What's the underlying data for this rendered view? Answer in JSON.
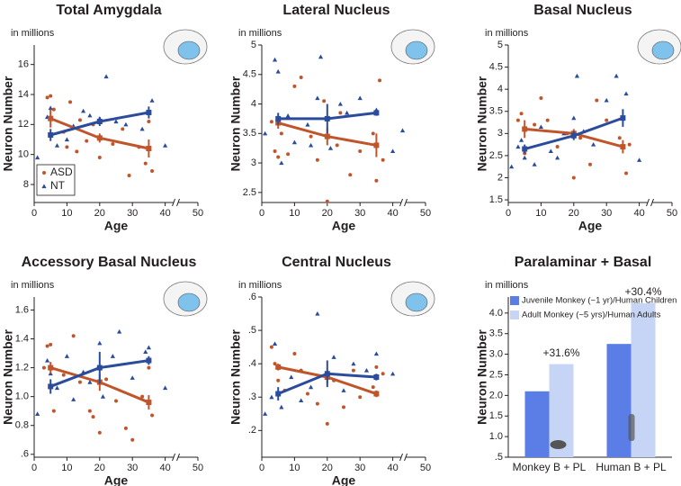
{
  "chart_data": [
    {
      "type": "scatter",
      "title": "Total Amygdala",
      "y_unit": "in millions",
      "xlabel": "Age",
      "ylabel": "Neuron Number",
      "xlim": [
        0,
        50
      ],
      "xticks": [
        0,
        10,
        20,
        30,
        40,
        50
      ],
      "ylim": [
        6.8,
        17.3
      ],
      "yticks": [
        8,
        10,
        12,
        14,
        16
      ],
      "legend": "lower left",
      "series": [
        {
          "name": "ASD",
          "color": "#c0552b",
          "marker": "circle",
          "x": [
            4,
            5,
            6,
            9,
            10,
            13,
            14,
            16,
            20,
            24,
            27,
            29,
            32,
            34,
            35,
            36,
            11,
            18
          ],
          "values": [
            13.8,
            13.9,
            13.0,
            11.5,
            10.5,
            10.2,
            12.3,
            10.9,
            9.8,
            10.7,
            11.7,
            8.6,
            10.5,
            9.4,
            12.2,
            8.9,
            13.5,
            12.0
          ],
          "mean_x": [
            5,
            20,
            35
          ],
          "mean_y": [
            12.4,
            11.1,
            10.4
          ],
          "mean_err": [
            0.6,
            0.3,
            0.6
          ]
        },
        {
          "name": "NT",
          "color": "#2b4c9b",
          "marker": "triangle",
          "x": [
            1,
            4,
            5,
            7,
            10,
            12,
            15,
            17,
            20,
            22,
            25,
            28,
            33,
            36,
            40
          ],
          "values": [
            9.8,
            12.5,
            13.1,
            10.6,
            11.0,
            11.9,
            12.9,
            12.6,
            12.4,
            15.2,
            12.2,
            12.0,
            11.7,
            13.6,
            10.6
          ],
          "mean_x": [
            5,
            20,
            35
          ],
          "mean_y": [
            11.3,
            12.2,
            12.8
          ],
          "mean_err": [
            0.4,
            0.3,
            0.4
          ]
        }
      ]
    },
    {
      "type": "scatter",
      "title": "Lateral Nucleus",
      "y_unit": "in millions",
      "xlabel": "Age",
      "ylabel": "Neuron Number",
      "xlim": [
        0,
        50
      ],
      "xticks": [
        0,
        10,
        20,
        30,
        40,
        50
      ],
      "ylim": [
        2.33,
        5
      ],
      "yticks": [
        2.5,
        3,
        3.5,
        4,
        4.5,
        5
      ],
      "series": [
        {
          "color": "#c0552b",
          "marker": "circle",
          "x": [
            3,
            4,
            5,
            6,
            8,
            10,
            12,
            15,
            17,
            19,
            20,
            23,
            24,
            27,
            30,
            34,
            35,
            36,
            37
          ],
          "values": [
            3.7,
            3.2,
            3.1,
            3.5,
            3.15,
            4.3,
            4.45,
            3.45,
            3.05,
            4.05,
            2.35,
            3.3,
            3.85,
            2.8,
            3.2,
            3.5,
            2.7,
            4.4,
            3.05
          ],
          "mean_x": [
            5,
            20,
            35
          ],
          "mean_y": [
            3.68,
            3.45,
            3.3
          ],
          "mean_err": [
            0.1,
            0.15,
            0.2
          ]
        },
        {
          "color": "#2b4c9b",
          "marker": "triangle",
          "x": [
            1,
            4,
            5,
            6,
            8,
            10,
            14,
            15,
            17,
            18,
            21,
            24,
            26,
            30,
            35,
            40,
            43
          ],
          "values": [
            3.5,
            4.75,
            4.55,
            3.0,
            3.8,
            3.35,
            3.65,
            3.3,
            4.1,
            4.8,
            3.25,
            4.0,
            3.85,
            4.1,
            3.9,
            3.2,
            3.55
          ],
          "mean_x": [
            5,
            20,
            35
          ],
          "mean_y": [
            3.75,
            3.75,
            3.85
          ],
          "mean_err": [
            0.1,
            0.25,
            0.05
          ]
        }
      ]
    },
    {
      "type": "scatter",
      "title": "Basal Nucleus",
      "y_unit": "in millions",
      "xlabel": "Age",
      "ylabel": "Neuron Number",
      "xlim": [
        0,
        50
      ],
      "xticks": [
        0,
        10,
        20,
        30,
        40,
        50
      ],
      "ylim": [
        1.44,
        5
      ],
      "yticks": [
        1.5,
        2,
        2.5,
        3,
        3.5,
        4,
        4.5,
        5
      ],
      "series": [
        {
          "color": "#c0552b",
          "marker": "circle",
          "x": [
            3,
            4,
            5,
            8,
            10,
            12,
            15,
            18,
            20,
            22,
            25,
            27,
            30,
            34,
            36,
            37
          ],
          "values": [
            3.3,
            3.45,
            2.55,
            3.2,
            3.8,
            3.3,
            2.7,
            3.0,
            2.0,
            2.9,
            2.3,
            3.75,
            3.3,
            2.9,
            2.1,
            2.75
          ],
          "mean_x": [
            5,
            20,
            35
          ],
          "mean_y": [
            3.1,
            3.0,
            2.7
          ],
          "mean_err": [
            0.2,
            0.1,
            0.15
          ]
        },
        {
          "color": "#2b4c9b",
          "marker": "triangle",
          "x": [
            1,
            3,
            4,
            5,
            8,
            10,
            13,
            15,
            17,
            20,
            21,
            23,
            26,
            30,
            33,
            36,
            40
          ],
          "values": [
            2.25,
            2.7,
            2.85,
            2.45,
            2.3,
            3.15,
            2.6,
            2.45,
            3.0,
            3.35,
            4.3,
            3.05,
            2.75,
            3.75,
            4.3,
            3.9,
            2.4
          ],
          "mean_x": [
            5,
            20,
            35
          ],
          "mean_y": [
            2.65,
            2.95,
            3.35
          ],
          "mean_err": [
            0.1,
            0.1,
            0.2
          ]
        }
      ]
    },
    {
      "type": "scatter",
      "title": "Accessory Basal Nucleus",
      "y_unit": "in millions",
      "xlabel": "Age",
      "ylabel": "Neuron Number",
      "xlim": [
        0,
        50
      ],
      "xticks": [
        0,
        10,
        20,
        30,
        40,
        50
      ],
      "ylim": [
        0.58,
        1.69
      ],
      "yticks": [
        {
          "value": 0.6,
          "label": ".6"
        },
        0.8,
        {
          "value": 1.0,
          "label": "1.0"
        },
        1.2,
        1.4,
        1.6
      ],
      "series": [
        {
          "color": "#c0552b",
          "marker": "circle",
          "x": [
            3,
            4,
            5,
            6,
            9,
            12,
            14,
            17,
            18,
            20,
            22,
            25,
            28,
            30,
            33,
            35,
            36
          ],
          "values": [
            1.2,
            1.35,
            1.36,
            0.9,
            1.15,
            1.42,
            1.1,
            0.9,
            0.86,
            0.75,
            1.12,
            0.97,
            0.78,
            0.7,
            1.0,
            1.2,
            0.87
          ],
          "mean_x": [
            5,
            20,
            35
          ],
          "mean_y": [
            1.2,
            1.1,
            0.96
          ],
          "mean_err": [
            0.04,
            0.06,
            0.05
          ]
        },
        {
          "color": "#2b4c9b",
          "marker": "triangle",
          "x": [
            1,
            4,
            5,
            7,
            10,
            12,
            15,
            17,
            20,
            21,
            24,
            26,
            30,
            34,
            35,
            40
          ],
          "values": [
            0.88,
            1.25,
            1.16,
            1.06,
            1.28,
            0.98,
            1.17,
            1.1,
            1.37,
            1.0,
            1.28,
            1.45,
            1.13,
            1.31,
            1.34,
            1.06
          ],
          "mean_x": [
            5,
            20,
            35
          ],
          "mean_y": [
            1.07,
            1.2,
            1.25
          ],
          "mean_err": [
            0.05,
            0.11,
            0.03
          ]
        }
      ]
    },
    {
      "type": "scatter",
      "title": "Central Nucleus",
      "y_unit": "in millions",
      "xlabel": "Age",
      "ylabel": "Neuron Number",
      "xlim": [
        0,
        50
      ],
      "xticks": [
        0,
        10,
        20,
        30,
        40,
        50
      ],
      "ylim": [
        0.12,
        0.6
      ],
      "yticks": [
        {
          "value": 0.2,
          "label": ".2"
        },
        {
          "value": 0.3,
          "label": ".3"
        },
        {
          "value": 0.4,
          "label": ".4"
        },
        {
          "value": 0.5,
          "label": ".5"
        },
        {
          "value": 0.6,
          "label": ".6"
        }
      ],
      "series": [
        {
          "color": "#c0552b",
          "marker": "circle",
          "x": [
            3,
            4,
            5,
            7,
            10,
            12,
            14,
            17,
            20,
            22,
            25,
            28,
            30,
            34,
            35,
            37
          ],
          "values": [
            0.45,
            0.4,
            0.35,
            0.32,
            0.43,
            0.38,
            0.31,
            0.28,
            0.22,
            0.35,
            0.27,
            0.38,
            0.3,
            0.33,
            0.39,
            0.37
          ],
          "mean_x": [
            5,
            20,
            35
          ],
          "mean_y": [
            0.39,
            0.36,
            0.31
          ],
          "mean_err": [
            0.01,
            0.02,
            0.01
          ]
        },
        {
          "color": "#2b4c9b",
          "marker": "triangle",
          "x": [
            1,
            3,
            4,
            6,
            9,
            12,
            15,
            17,
            20,
            22,
            25,
            28,
            32,
            35,
            40
          ],
          "values": [
            0.25,
            0.3,
            0.46,
            0.27,
            0.36,
            0.29,
            0.33,
            0.55,
            0.36,
            0.42,
            0.32,
            0.4,
            0.38,
            0.43,
            0.37
          ],
          "mean_x": [
            5,
            20,
            35
          ],
          "mean_y": [
            0.31,
            0.37,
            0.36
          ],
          "mean_err": [
            0.02,
            0.04,
            0.01
          ]
        }
      ]
    },
    {
      "type": "bar",
      "title": "Paralaminar + Basal",
      "y_unit": "in millions",
      "ylabel": "Neuron Number",
      "categories": [
        "Monkey B + PL",
        "Human B + PL"
      ],
      "ylim": [
        0.5,
        4.39
      ],
      "yticks": [
        {
          "value": 0.5,
          "label": ".5"
        },
        {
          "value": 1.0,
          "label": "1.0"
        },
        1.5,
        {
          "value": 2.0,
          "label": "2.0"
        },
        2.5,
        {
          "value": 3.0,
          "label": "3.0"
        },
        3.5,
        {
          "value": 4.0,
          "label": "4.0"
        }
      ],
      "legend": "upper left",
      "series": [
        {
          "name": "Juvenile Monkey (~1 yr)/Human Children",
          "color": "#5a7de6",
          "values": [
            2.1,
            3.25
          ]
        },
        {
          "name": "Adult Monkey (~5 yrs)/Human Adults",
          "color": "#c6d4f5",
          "values": [
            2.76,
            4.24
          ]
        }
      ],
      "annotations": [
        "+31.6%",
        "+30.4%"
      ]
    }
  ]
}
